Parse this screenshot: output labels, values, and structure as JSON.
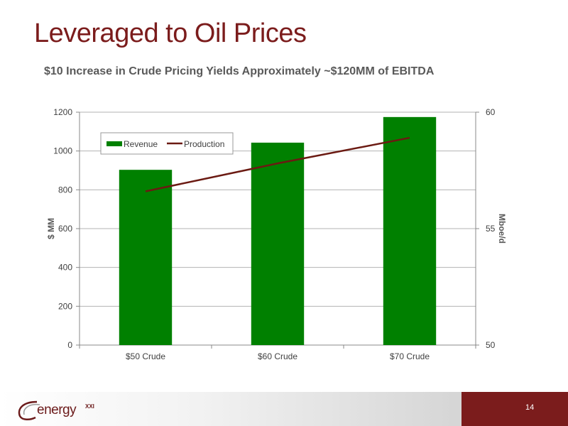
{
  "slide": {
    "title": "Leveraged to Oil Prices",
    "page_number": "14",
    "logo": {
      "word": "energy",
      "superscript": "XXI"
    }
  },
  "colors": {
    "title": "#7b1c1c",
    "revenue_bar": "#008000",
    "production_line": "#6b1a12",
    "footer_accent": "#7b1c1c",
    "grid": "#b3b3b3"
  },
  "chart_data": {
    "type": "bar",
    "title": "$10 Increase in Crude Pricing Yields Approximately ~$120MM of EBITDA",
    "categories": [
      "$50 Crude",
      "$60 Crude",
      "$70 Crude"
    ],
    "series": [
      {
        "name": "Revenue",
        "type": "bar",
        "axis": "left",
        "values": [
          903,
          1043,
          1175
        ]
      },
      {
        "name": "Production",
        "type": "line",
        "axis": "right",
        "values": [
          56.6,
          57.8,
          58.9
        ]
      }
    ],
    "ylabel": "$ MM",
    "ylim": [
      0,
      1200
    ],
    "yticks": [
      "0",
      "200",
      "400",
      "600",
      "800",
      "1000",
      "1200"
    ],
    "y2label": "Mboe/d",
    "y2lim": [
      50,
      60
    ],
    "y2ticks": [
      "50",
      "55",
      "60"
    ],
    "grid": true,
    "legend": "top-left"
  }
}
